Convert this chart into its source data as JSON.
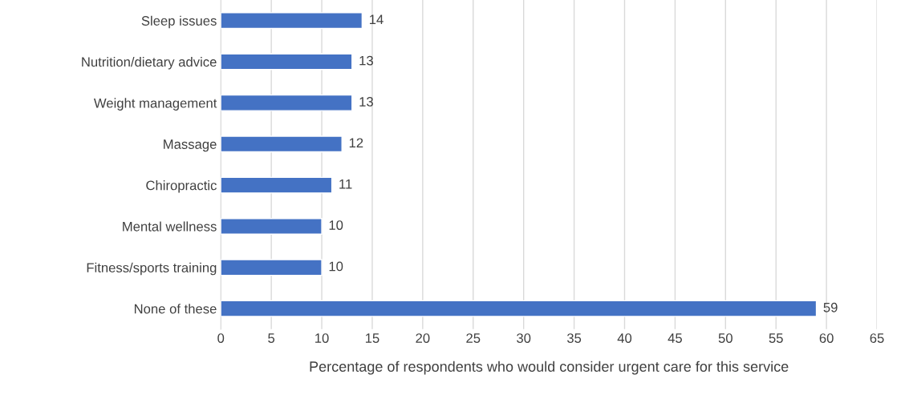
{
  "chart_data": {
    "type": "bar",
    "orientation": "horizontal",
    "xlabel": "Percentage of respondents who would consider urgent care for this service",
    "categories": [
      "Sleep issues",
      "Nutrition/dietary advice",
      "Weight management",
      "Massage",
      "Chiropractic",
      "Mental wellness",
      "Fitness/sports training",
      "None of these"
    ],
    "values": [
      14,
      13,
      13,
      12,
      11,
      10,
      10,
      59
    ],
    "color": "#4472c4",
    "xlim": [
      0,
      65
    ],
    "xticks": [
      0,
      5,
      10,
      15,
      20,
      25,
      30,
      35,
      40,
      45,
      50,
      55,
      60,
      65
    ],
    "grid": "x",
    "data_labels": true
  }
}
